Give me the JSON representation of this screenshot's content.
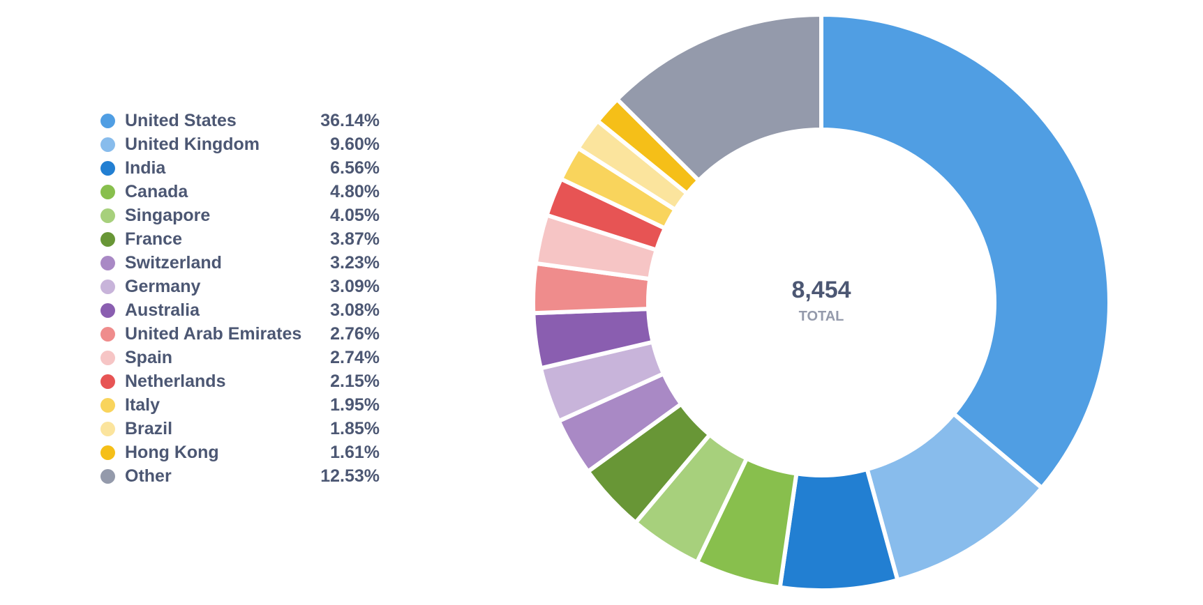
{
  "chart_data": {
    "type": "pie",
    "title": "",
    "center": {
      "value": "8,454",
      "label": "TOTAL"
    },
    "slices": [
      {
        "label": "United States",
        "value": 36.14,
        "display": "36.14%",
        "color": "#509ee3"
      },
      {
        "label": "United Kingdom",
        "value": 9.6,
        "display": "9.60%",
        "color": "#88bcec"
      },
      {
        "label": "India",
        "value": 6.56,
        "display": "6.56%",
        "color": "#227fd2"
      },
      {
        "label": "Canada",
        "value": 4.8,
        "display": "4.80%",
        "color": "#88bf4d"
      },
      {
        "label": "Singapore",
        "value": 4.05,
        "display": "4.05%",
        "color": "#a7d07c"
      },
      {
        "label": "France",
        "value": 3.87,
        "display": "3.87%",
        "color": "#689636"
      },
      {
        "label": "Switzerland",
        "value": 3.23,
        "display": "3.23%",
        "color": "#a989c5"
      },
      {
        "label": "Germany",
        "value": 3.09,
        "display": "3.09%",
        "color": "#c8b4da"
      },
      {
        "label": "Australia",
        "value": 3.08,
        "display": "3.08%",
        "color": "#8a5eb0"
      },
      {
        "label": "United Arab Emirates",
        "value": 2.76,
        "display": "2.76%",
        "color": "#ef8c8c"
      },
      {
        "label": "Spain",
        "value": 2.74,
        "display": "2.74%",
        "color": "#f6c5c5"
      },
      {
        "label": "Netherlands",
        "value": 2.15,
        "display": "2.15%",
        "color": "#e75454"
      },
      {
        "label": "Italy",
        "value": 1.95,
        "display": "1.95%",
        "color": "#f9d45c"
      },
      {
        "label": "Brazil",
        "value": 1.85,
        "display": "1.85%",
        "color": "#fbe49d"
      },
      {
        "label": "Hong Kong",
        "value": 1.61,
        "display": "1.61%",
        "color": "#f5bf18"
      },
      {
        "label": "Other",
        "value": 12.53,
        "display": "12.53%",
        "color": "#949aab"
      }
    ],
    "legend_position": "left"
  }
}
